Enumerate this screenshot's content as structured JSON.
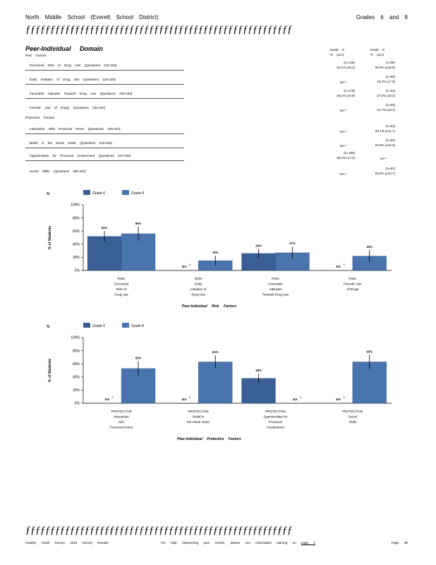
{
  "header": {
    "left": "North Middle School (Everett School District)",
    "right": "Grades 6 and 8"
  },
  "rule_text": "ƒƒƒƒƒƒƒƒƒƒƒƒƒƒƒƒƒƒƒƒƒƒƒƒƒƒƒƒƒƒƒƒƒƒƒƒƒƒƒƒƒƒƒƒƒƒƒƒƒƒƒƒƒƒ",
  "domain_title": "Peer-Individual Domain",
  "col_headers": {
    "g6_grade": "Grade 6",
    "g6_stat": "% (±CI)",
    "g8_grade": "Grade 8",
    "g8_stat": "% (±CI)"
  },
  "risk_section_label": "Risk Factors",
  "protective_section_label": "Protective Factors",
  "rows": [
    {
      "label": "Perceived Risk of Drug Use (Questions 222-225)",
      "g6_n": "(n=146)",
      "g6_val": "52.1% (±8.2)",
      "g6_na": "",
      "g8_n": "(n=85)",
      "g8_val": "56.5% (±10.8)",
      "g8_na": ""
    },
    {
      "label": "Early Initiation of Drug Use (Questions 226-229)",
      "g6_n": "",
      "g6_val": "",
      "g6_na": "NA",
      "g8_n": "(n=92)",
      "g8_val": "15.2% (±7.5)",
      "g8_na": ""
    },
    {
      "label": "Favorable Attitudes Towards Drug Use (Questions 230-233)",
      "g6_n": "(n=176)",
      "g6_val": "26.1% (±6.6)",
      "g6_na": "",
      "g8_n": "(n=91)",
      "g8_val": "27.5% (±9.3)",
      "g8_na": ""
    },
    {
      "label": "Friends' Use of Drugs (Questions 234-237)",
      "g6_n": "",
      "g6_val": "",
      "g6_na": "NA",
      "g8_n": "(n=83)",
      "g8_val": "21.7% (±9.1)",
      "g8_na": ""
    },
    {
      "label": "Interaction With Prosocial Peers (Questions 238-242)",
      "g6_n": "",
      "g6_val": "",
      "g6_na": "NA",
      "g8_n": "(n=81)",
      "g8_val": "53.1% (±11.1)",
      "g8_na": ""
    },
    {
      "label": "Belief in the Moral Order (Questions 243-246)",
      "g6_n": "",
      "g6_val": "",
      "g6_na": "NA",
      "g8_n": "(n=84)",
      "g8_val": "62.8% (±10.0)",
      "g8_na": ""
    },
    {
      "label": "Opportunities for Prosocial Involvement (Questions 247-249)",
      "g6_n": "(n=189)",
      "g6_val": "38.1% (±7.0)",
      "g6_na": "",
      "g8_n": "",
      "g8_val": "",
      "g8_na": "NA"
    },
    {
      "label": "Social Skills (Questions 250-252)",
      "g6_n": "",
      "g6_val": "",
      "g6_na": "NA",
      "g8_n": "(n=81)",
      "g8_val": "63.0% (±10.7)",
      "g8_na": ""
    }
  ],
  "na_sup": "5",
  "chart_data": [
    {
      "type": "bar",
      "title": "Peer-Individual Risk Factors",
      "ylabel": "% of Students",
      "ylim": [
        0,
        100
      ],
      "yticks": [
        "0%",
        "20%",
        "40%",
        "60%",
        "80%",
        "100%"
      ],
      "legend_marker": "%",
      "legend_position": "top-left",
      "grid": false,
      "colors": {
        "grade6": "#3a5f95",
        "grade8": "#4a74ad",
        "errorbar": "#000000"
      },
      "categories": [
        [
          "RISK",
          "Perceived",
          "Risk of",
          "Drug Use"
        ],
        [
          "RISK",
          "Early",
          "Initiation of",
          "Drug Use"
        ],
        [
          "RISK",
          "Favorable",
          "Attitudes",
          "Towards Drug Use"
        ],
        [
          "RISK",
          "Friends' Use",
          "of Drugs"
        ]
      ],
      "series": [
        {
          "name": "Grade 6",
          "values": [
            52,
            null,
            26,
            null
          ],
          "ci": [
            8.2,
            null,
            6.6,
            null
          ],
          "labels": [
            "52%",
            "NA",
            "26%",
            "NA"
          ]
        },
        {
          "name": "Grade 8",
          "values": [
            56,
            15,
            27,
            22
          ],
          "ci": [
            10.8,
            7.5,
            9.3,
            9.1
          ],
          "labels": [
            "56%",
            "15%",
            "27%",
            "22%"
          ]
        }
      ]
    },
    {
      "type": "bar",
      "title": "Peer-Individual Protective Factors",
      "ylabel": "% of Students",
      "ylim": [
        0,
        100
      ],
      "yticks": [
        "0%",
        "20%",
        "40%",
        "60%",
        "80%",
        "100%"
      ],
      "legend_marker": "%",
      "legend_position": "top-left",
      "grid": false,
      "colors": {
        "grade6": "#3a5f95",
        "grade8": "#4a74ad",
        "errorbar": "#000000"
      },
      "categories": [
        [
          "PROTECTIVE",
          "Interaction",
          "with",
          "Prosocial Peers"
        ],
        [
          "PROTECTIVE",
          "Belief in",
          "the Moral Order"
        ],
        [
          "PROTECTIVE",
          "Opportunities for",
          "Prosocial",
          "Involvement"
        ],
        [
          "PROTECTIVE",
          "Social",
          "Skills"
        ]
      ],
      "series": [
        {
          "name": "Grade 6",
          "values": [
            null,
            null,
            38,
            null
          ],
          "ci": [
            null,
            null,
            7.0,
            null
          ],
          "labels": [
            "NA",
            "NA",
            "38%",
            "NA"
          ]
        },
        {
          "name": "Grade 8",
          "values": [
            53,
            63,
            null,
            63
          ],
          "ci": [
            11.1,
            10.0,
            null,
            10.7
          ],
          "labels": [
            "53%",
            "63%",
            "NA",
            "63%"
          ]
        }
      ]
    }
  ],
  "footer": {
    "left": "Healthy Youth Survey 2016 Survey Results",
    "middle": "For help interpreting your results, please see information starting on",
    "page_link": "page 2",
    "right": "Page 38"
  }
}
